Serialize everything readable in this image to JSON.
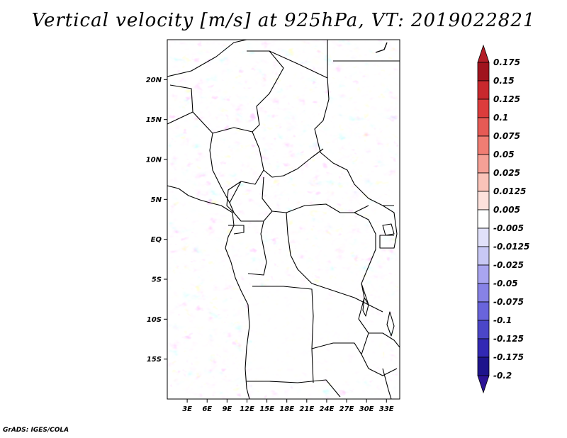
{
  "title": "Vertical velocity [m/s] at 925hPa, VT: 2019022821",
  "footer": "GrADS: IGES/COLA",
  "map": {
    "lon_range": [
      0,
      35
    ],
    "lat_range": [
      -20,
      25
    ],
    "lon_ticks": [
      "3E",
      "6E",
      "9E",
      "12E",
      "15E",
      "18E",
      "21E",
      "24E",
      "27E",
      "30E",
      "33E"
    ],
    "lat_ticks": [
      "20N",
      "15N",
      "10N",
      "5N",
      "EQ",
      "5S",
      "10S",
      "15S"
    ]
  },
  "colorbar": {
    "levels": [
      "0.175",
      "0.15",
      "0.125",
      "0.1",
      "0.075",
      "0.05",
      "0.025",
      "0.0125",
      "0.005",
      "-0.005",
      "-0.0125",
      "-0.025",
      "-0.05",
      "-0.075",
      "-0.1",
      "-0.125",
      "-0.175",
      "-0.2"
    ],
    "colors": [
      "#a0141e",
      "#c8282d",
      "#dc3c3c",
      "#e65a55",
      "#f07d73",
      "#f5a096",
      "#fac3b9",
      "#fde1dc",
      "#ffffff",
      "#e1e1fa",
      "#c8c8f5",
      "#a9a5f0",
      "#8782e6",
      "#6964dc",
      "#4b46c8",
      "#3228b4",
      "#1e148c"
    ],
    "top_color": "#b41e28",
    "bottom_color": "#2d1496"
  }
}
